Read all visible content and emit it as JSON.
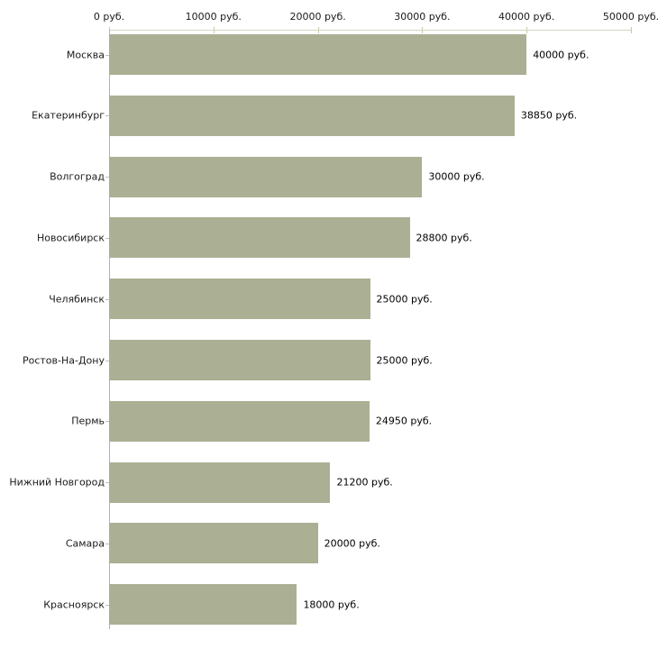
{
  "chart_data": {
    "type": "bar",
    "orientation": "horizontal",
    "title": "",
    "xlabel": "",
    "ylabel": "",
    "xlim": [
      0,
      50000
    ],
    "grid": false,
    "legend": false,
    "x_tick_values": [
      0,
      10000,
      20000,
      30000,
      40000,
      50000
    ],
    "x_tick_labels": [
      "0 руб.",
      "10000 руб.",
      "20000 руб.",
      "30000 руб.",
      "40000 руб.",
      "50000 руб."
    ],
    "categories": [
      "Москва",
      "Екатеринбург",
      "Волгоград",
      "Новосибирск",
      "Челябинск",
      "Ростов-На-Дону",
      "Пермь",
      "Нижний Новгород",
      "Самара",
      "Красноярск"
    ],
    "values": [
      40000,
      38850,
      30000,
      28800,
      25000,
      25000,
      24950,
      21200,
      20000,
      18000
    ],
    "value_labels": [
      "40000 руб.",
      "38850 руб.",
      "30000 руб.",
      "28800 руб.",
      "25000 руб.",
      "25000 руб.",
      "24950 руб.",
      "21200 руб.",
      "20000 руб.",
      "18000 руб."
    ],
    "colors": {
      "bar": "#ABAF94",
      "x_axis_line": "#D5D5C3",
      "x_tick": "#C9C9A9",
      "y_axis_line": "#B2B2B2",
      "y_tick": "#C2C2B2",
      "text": "#1A1A1A",
      "value_text": "#000000",
      "background": "#FFFFFF"
    }
  }
}
